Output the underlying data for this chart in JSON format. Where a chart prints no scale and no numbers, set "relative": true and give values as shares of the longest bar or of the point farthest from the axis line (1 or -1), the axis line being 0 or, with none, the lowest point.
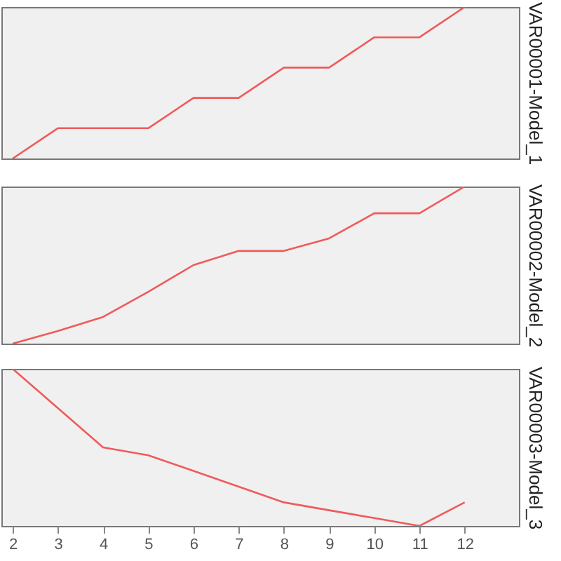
{
  "chart_data": [
    {
      "type": "line",
      "ylabel": "VAR00001-Model_1",
      "relative": true,
      "color": "#f05a5a",
      "x": [
        2,
        3,
        4,
        5,
        6,
        7,
        8,
        9,
        10,
        11,
        12
      ],
      "values": [
        0,
        0.2,
        0.2,
        0.2,
        0.4,
        0.4,
        0.6,
        0.6,
        0.8,
        0.8,
        1
      ],
      "xlim": [
        1.75,
        13.2
      ],
      "xticks": [
        2,
        3,
        4,
        5,
        6,
        7,
        8,
        9,
        10,
        11,
        12
      ],
      "tick_labels": false
    },
    {
      "type": "line",
      "ylabel": "VAR00002-Model_2",
      "relative": true,
      "color": "#f05a5a",
      "x": [
        2,
        3,
        4,
        5,
        6,
        7,
        8,
        9,
        10,
        11,
        12
      ],
      "values": [
        0,
        0.08,
        0.17,
        0.33,
        0.5,
        0.59,
        0.59,
        0.67,
        0.83,
        0.83,
        1
      ],
      "xlim": [
        1.75,
        13.2
      ],
      "xticks": [
        2,
        3,
        4,
        5,
        6,
        7,
        8,
        9,
        10,
        11,
        12
      ],
      "tick_labels": false
    },
    {
      "type": "line",
      "ylabel": "VAR00003-Model_3",
      "relative": true,
      "color": "#f05a5a",
      "x": [
        2,
        3,
        4,
        5,
        6,
        7,
        8,
        9,
        10,
        11,
        12
      ],
      "values": [
        1,
        0.75,
        0.5,
        0.45,
        0.35,
        0.25,
        0.15,
        0.1,
        0.05,
        0,
        0.15
      ],
      "xlim": [
        1.75,
        13.2
      ],
      "xticks": [
        2,
        3,
        4,
        5,
        6,
        7,
        8,
        9,
        10,
        11,
        12
      ],
      "tick_labels": "x"
    }
  ]
}
